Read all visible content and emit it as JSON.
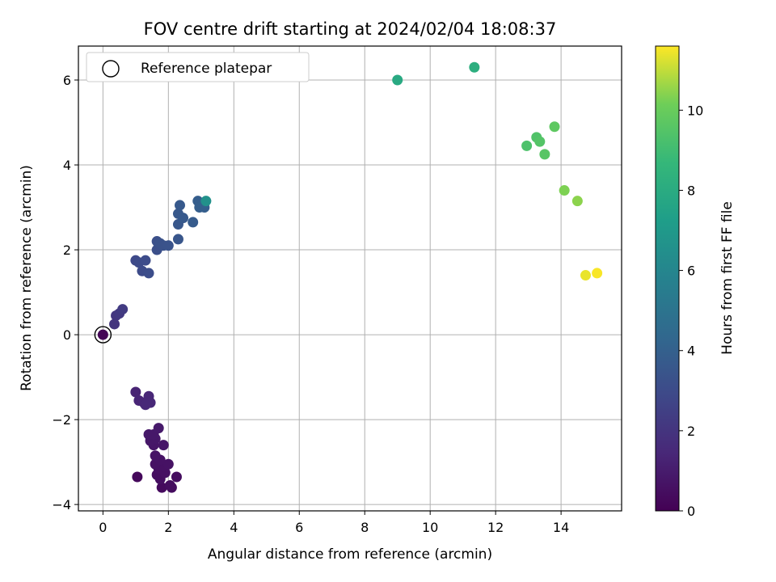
{
  "chart_data": {
    "type": "scatter",
    "title": "FOV centre drift starting at 2024/02/04 18:08:37",
    "xlabel": "Angular distance from reference (arcmin)",
    "ylabel": "Rotation from reference (arcmin)",
    "xlim": [
      -0.75,
      15.85
    ],
    "ylim": [
      -4.15,
      6.8
    ],
    "xticks": [
      0,
      2,
      4,
      6,
      8,
      10,
      12,
      14
    ],
    "yticks": [
      -4,
      -2,
      0,
      2,
      4,
      6
    ],
    "xtick_labels": [
      "0",
      "2",
      "4",
      "6",
      "8",
      "10",
      "12",
      "14"
    ],
    "ytick_labels": [
      "−4",
      "−2",
      "0",
      "2",
      "4",
      "6"
    ],
    "grid": true,
    "legend": {
      "placement": "top-left",
      "entries": [
        "Reference platepar"
      ]
    },
    "colorbar": {
      "label": "Hours from first FF file",
      "range": [
        0,
        11.6
      ],
      "ticks": [
        0,
        2,
        4,
        6,
        8,
        10
      ],
      "tick_labels": [
        "0",
        "2",
        "4",
        "6",
        "8",
        "10"
      ],
      "colormap": "viridis"
    },
    "reference_point": {
      "x": 0,
      "y": 0,
      "c": 0.1
    },
    "points": [
      {
        "x": 1.05,
        "y": -3.35,
        "c": 0.3
      },
      {
        "x": 1.8,
        "y": -3.6,
        "c": 0.35
      },
      {
        "x": 2.1,
        "y": -3.6,
        "c": 0.4
      },
      {
        "x": 2.05,
        "y": -3.55,
        "c": 0.45
      },
      {
        "x": 2.25,
        "y": -3.35,
        "c": 0.45
      },
      {
        "x": 1.75,
        "y": -3.4,
        "c": 0.5
      },
      {
        "x": 1.65,
        "y": -3.3,
        "c": 0.5
      },
      {
        "x": 1.9,
        "y": -3.25,
        "c": 0.55
      },
      {
        "x": 1.7,
        "y": -3.15,
        "c": 0.55
      },
      {
        "x": 1.85,
        "y": -3.1,
        "c": 0.6
      },
      {
        "x": 1.6,
        "y": -3.05,
        "c": 0.6
      },
      {
        "x": 2.0,
        "y": -3.05,
        "c": 0.65
      },
      {
        "x": 1.75,
        "y": -2.95,
        "c": 0.65
      },
      {
        "x": 1.6,
        "y": -2.85,
        "c": 0.7
      },
      {
        "x": 1.55,
        "y": -2.6,
        "c": 0.75
      },
      {
        "x": 1.85,
        "y": -2.6,
        "c": 0.75
      },
      {
        "x": 1.45,
        "y": -2.5,
        "c": 0.8
      },
      {
        "x": 1.6,
        "y": -2.45,
        "c": 0.8
      },
      {
        "x": 1.4,
        "y": -2.35,
        "c": 0.85
      },
      {
        "x": 1.55,
        "y": -2.35,
        "c": 0.85
      },
      {
        "x": 1.7,
        "y": -2.2,
        "c": 0.9
      },
      {
        "x": 1.0,
        "y": -1.35,
        "c": 1.3
      },
      {
        "x": 1.1,
        "y": -1.55,
        "c": 1.35
      },
      {
        "x": 1.25,
        "y": -1.6,
        "c": 1.4
      },
      {
        "x": 1.4,
        "y": -1.45,
        "c": 1.4
      },
      {
        "x": 1.45,
        "y": -1.6,
        "c": 1.45
      },
      {
        "x": 1.3,
        "y": -1.65,
        "c": 1.45
      },
      {
        "x": 0.35,
        "y": 0.25,
        "c": 2.0
      },
      {
        "x": 0.4,
        "y": 0.45,
        "c": 2.1
      },
      {
        "x": 0.5,
        "y": 0.5,
        "c": 2.2
      },
      {
        "x": 0.6,
        "y": 0.6,
        "c": 2.3
      },
      {
        "x": 1.0,
        "y": 1.75,
        "c": 2.9
      },
      {
        "x": 1.1,
        "y": 1.7,
        "c": 3.0
      },
      {
        "x": 1.2,
        "y": 1.5,
        "c": 3.0
      },
      {
        "x": 1.3,
        "y": 1.75,
        "c": 3.05
      },
      {
        "x": 1.4,
        "y": 1.45,
        "c": 3.1
      },
      {
        "x": 1.65,
        "y": 2.0,
        "c": 3.2
      },
      {
        "x": 1.65,
        "y": 2.2,
        "c": 3.25
      },
      {
        "x": 1.75,
        "y": 2.15,
        "c": 3.3
      },
      {
        "x": 1.85,
        "y": 2.1,
        "c": 3.3
      },
      {
        "x": 2.0,
        "y": 2.1,
        "c": 3.35
      },
      {
        "x": 2.3,
        "y": 2.25,
        "c": 3.5
      },
      {
        "x": 2.3,
        "y": 2.6,
        "c": 3.55
      },
      {
        "x": 2.3,
        "y": 2.85,
        "c": 3.6
      },
      {
        "x": 2.35,
        "y": 3.05,
        "c": 3.65
      },
      {
        "x": 2.45,
        "y": 2.75,
        "c": 3.65
      },
      {
        "x": 2.75,
        "y": 2.65,
        "c": 3.75
      },
      {
        "x": 2.9,
        "y": 3.15,
        "c": 3.85
      },
      {
        "x": 2.95,
        "y": 3.0,
        "c": 3.9
      },
      {
        "x": 3.1,
        "y": 3.0,
        "c": 3.95
      },
      {
        "x": 3.1,
        "y": 3.1,
        "c": 4.0
      },
      {
        "x": 3.15,
        "y": 3.15,
        "c": 6.6
      },
      {
        "x": 9.0,
        "y": 6.0,
        "c": 7.9
      },
      {
        "x": 11.35,
        "y": 6.3,
        "c": 8.2
      },
      {
        "x": 12.95,
        "y": 4.45,
        "c": 9.3
      },
      {
        "x": 13.25,
        "y": 4.65,
        "c": 9.4
      },
      {
        "x": 13.35,
        "y": 4.55,
        "c": 9.5
      },
      {
        "x": 13.5,
        "y": 4.25,
        "c": 9.6
      },
      {
        "x": 13.8,
        "y": 4.9,
        "c": 9.75
      },
      {
        "x": 14.1,
        "y": 3.4,
        "c": 10.3
      },
      {
        "x": 14.5,
        "y": 3.15,
        "c": 10.45
      },
      {
        "x": 14.75,
        "y": 1.4,
        "c": 11.4
      },
      {
        "x": 15.1,
        "y": 1.45,
        "c": 11.55
      }
    ],
    "colors": {
      "reference_edge": "#000000",
      "frame": "#000000",
      "grid": "#b0b0b0",
      "legend_border": "#cccccc"
    }
  }
}
